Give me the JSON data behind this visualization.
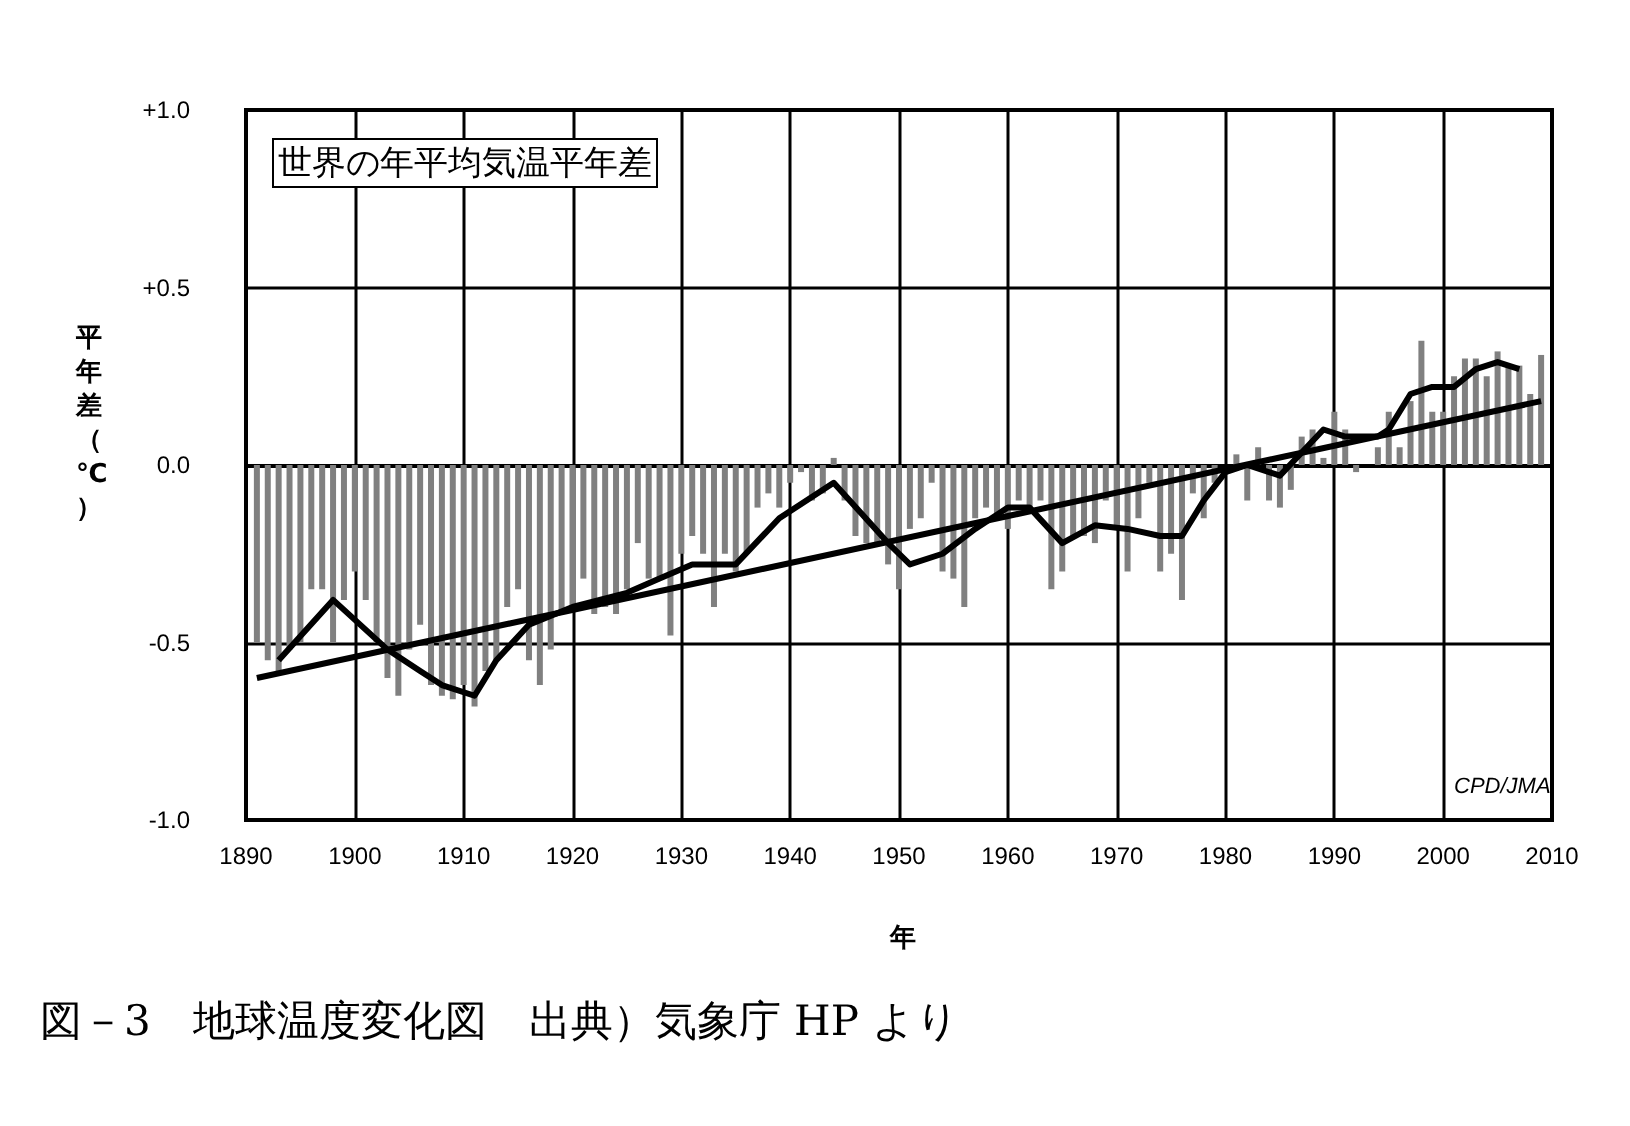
{
  "chart_data": {
    "type": "bar",
    "title": "世界の年平均気温平年差",
    "xlabel": "年",
    "ylabel": "平年差（℃）",
    "xlim": [
      1890,
      2010
    ],
    "xticks": [
      1890,
      1900,
      1910,
      1920,
      1930,
      1940,
      1950,
      1960,
      1970,
      1980,
      1990,
      2000,
      2010
    ],
    "ylim": [
      -1.0,
      1.0
    ],
    "yticks": [
      {
        "value": -1.0,
        "label": "-1.0"
      },
      {
        "value": -0.5,
        "label": "-0.5"
      },
      {
        "value": 0,
        "label": "0.0"
      },
      {
        "value": 0.5,
        "label": "+0.5"
      },
      {
        "value": 1.0,
        "label": "+1.0"
      }
    ],
    "grid": true,
    "annotations": [
      "CPD/JMA",
      "図－3　地球温度変化図　出典）気象庁 HP より"
    ],
    "series": [
      {
        "color": "#808080",
        "x": [
          1891,
          1892,
          1893,
          1894,
          1895,
          1896,
          1897,
          1898,
          1899,
          1900,
          1901,
          1902,
          1903,
          1904,
          1905,
          1906,
          1907,
          1908,
          1909,
          1910,
          1911,
          1912,
          1913,
          1914,
          1915,
          1916,
          1917,
          1918,
          1919,
          1920,
          1921,
          1922,
          1923,
          1924,
          1925,
          1926,
          1927,
          1928,
          1929,
          1930,
          1931,
          1932,
          1933,
          1934,
          1935,
          1936,
          1937,
          1938,
          1939,
          1940,
          1941,
          1942,
          1943,
          1944,
          1945,
          1946,
          1947,
          1948,
          1949,
          1950,
          1951,
          1952,
          1953,
          1954,
          1955,
          1956,
          1957,
          1958,
          1959,
          1960,
          1961,
          1962,
          1963,
          1964,
          1965,
          1966,
          1967,
          1968,
          1969,
          1970,
          1971,
          1972,
          1973,
          1974,
          1975,
          1976,
          1977,
          1978,
          1979,
          1980,
          1981,
          1982,
          1983,
          1984,
          1985,
          1986,
          1987,
          1988,
          1989,
          1990,
          1991,
          1992,
          1993,
          1994,
          1995,
          1996,
          1997,
          1998,
          1999,
          2000,
          2001,
          2002,
          2003,
          2004,
          2005,
          2006,
          2007,
          2008,
          2009
        ],
        "values": [
          -0.5,
          -0.55,
          -0.58,
          -0.52,
          -0.5,
          -0.35,
          -0.35,
          -0.5,
          -0.38,
          -0.3,
          -0.38,
          -0.5,
          -0.6,
          -0.65,
          -0.52,
          -0.45,
          -0.62,
          -0.65,
          -0.66,
          -0.62,
          -0.68,
          -0.58,
          -0.55,
          -0.4,
          -0.35,
          -0.55,
          -0.62,
          -0.52,
          -0.42,
          -0.4,
          -0.32,
          -0.42,
          -0.4,
          -0.42,
          -0.35,
          -0.22,
          -0.32,
          -0.32,
          -0.48,
          -0.25,
          -0.2,
          -0.25,
          -0.4,
          -0.25,
          -0.3,
          -0.25,
          -0.12,
          -0.08,
          -0.12,
          -0.05,
          -0.02,
          -0.1,
          -0.08,
          0.02,
          -0.1,
          -0.2,
          -0.22,
          -0.22,
          -0.28,
          -0.35,
          -0.18,
          -0.15,
          -0.05,
          -0.3,
          -0.32,
          -0.4,
          -0.15,
          -0.12,
          -0.15,
          -0.18,
          -0.1,
          -0.12,
          -0.1,
          -0.35,
          -0.3,
          -0.2,
          -0.2,
          -0.22,
          -0.1,
          -0.18,
          -0.3,
          -0.15,
          -0.05,
          -0.3,
          -0.25,
          -0.38,
          -0.08,
          -0.15,
          -0.05,
          0.0,
          0.03,
          -0.1,
          0.05,
          -0.1,
          -0.12,
          -0.07,
          0.08,
          0.1,
          0.02,
          0.15,
          0.1,
          -0.02,
          0.0,
          0.05,
          0.15,
          0.05,
          0.18,
          0.35,
          0.15,
          0.15,
          0.25,
          0.3,
          0.3,
          0.25,
          0.32,
          0.28,
          0.28,
          0.2,
          0.31
        ]
      },
      {
        "type": "line",
        "color": "#000000",
        "x": [
          1893,
          1898,
          1903,
          1906,
          1908,
          1911,
          1913,
          1916,
          1920,
          1925,
          1928,
          1931,
          1935,
          1939,
          1944,
          1949,
          1951,
          1954,
          1957,
          1960,
          1962,
          1965,
          1968,
          1971,
          1974,
          1976,
          1978,
          1980,
          1982,
          1985,
          1989,
          1991,
          1994,
          1995,
          1997,
          1999,
          2001,
          2003,
          2005,
          2007
        ],
        "values": [
          -0.55,
          -0.38,
          -0.52,
          -0.58,
          -0.62,
          -0.65,
          -0.55,
          -0.45,
          -0.4,
          -0.36,
          -0.32,
          -0.28,
          -0.28,
          -0.15,
          -0.05,
          -0.22,
          -0.28,
          -0.25,
          -0.18,
          -0.12,
          -0.12,
          -0.22,
          -0.17,
          -0.18,
          -0.2,
          -0.2,
          -0.1,
          -0.02,
          0.0,
          -0.03,
          0.1,
          0.08,
          0.08,
          0.1,
          0.2,
          0.22,
          0.22,
          0.27,
          0.29,
          0.27
        ]
      },
      {
        "type": "line",
        "color": "#000000",
        "x": [
          1891,
          2009
        ],
        "values": [
          -0.6,
          0.18
        ]
      }
    ]
  }
}
